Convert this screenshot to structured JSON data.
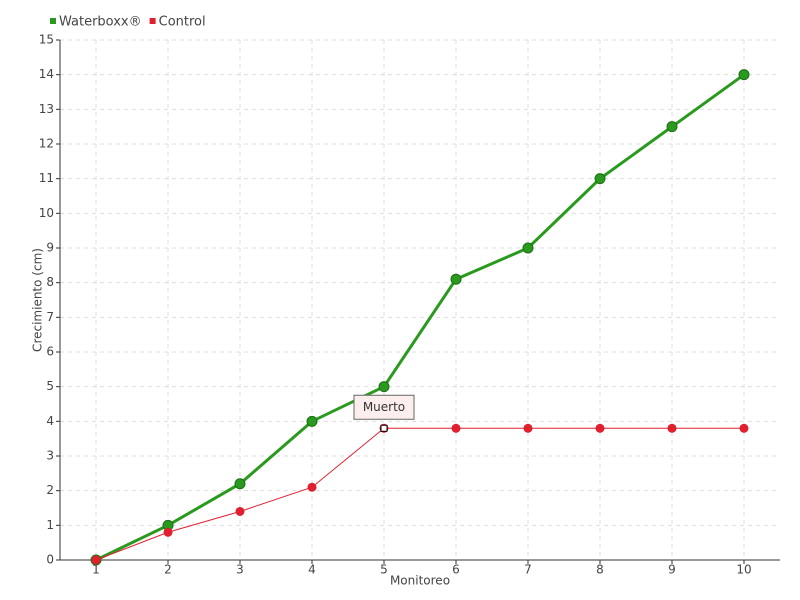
{
  "chart_data": {
    "type": "line",
    "x_label": "Monitoreo",
    "y_label": "Crecimiento (cm)",
    "x": [
      1,
      2,
      3,
      4,
      5,
      6,
      7,
      8,
      9,
      10
    ],
    "series": [
      {
        "name": "Waterboxx®",
        "color": "#2a9a1f",
        "values": [
          0,
          1,
          2.2,
          4,
          5,
          8.1,
          9,
          11,
          12.5,
          14
        ]
      },
      {
        "name": "Control",
        "color": "#e0202f",
        "values": [
          0,
          0.8,
          1.4,
          2.1,
          3.8,
          3.8,
          3.8,
          3.8,
          3.8,
          3.8
        ]
      }
    ],
    "xlim": [
      0.5,
      10.5
    ],
    "xticks": [
      1,
      2,
      3,
      4,
      5,
      6,
      7,
      8,
      9,
      10
    ],
    "ylim": [
      0,
      15
    ],
    "yticks": [
      0,
      1,
      2,
      3,
      4,
      5,
      6,
      7,
      8,
      9,
      10,
      11,
      12,
      13,
      14,
      15
    ],
    "grid": true,
    "legend": "top-left",
    "annotations": [
      {
        "text": "Muerto",
        "x": 5,
        "y": 3.8
      }
    ]
  }
}
